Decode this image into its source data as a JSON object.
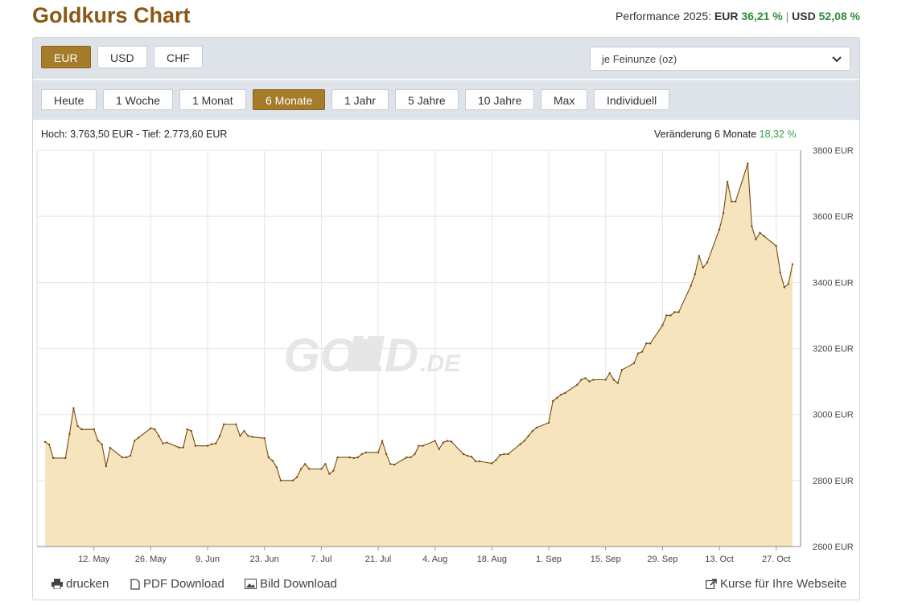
{
  "header": {
    "title": "Goldkurs Chart",
    "performance": {
      "label": "Performance 2025:",
      "eur_label": "EUR",
      "eur_value": "36,21 %",
      "separator": "|",
      "usd_label": "USD",
      "usd_value": "52,08 %"
    }
  },
  "currency_buttons": [
    "EUR",
    "USD",
    "CHF"
  ],
  "active_currency": 0,
  "unit_select": "je Feinunze (oz)",
  "range_buttons": [
    "Heute",
    "1 Woche",
    "1 Monat",
    "6 Monate",
    "1 Jahr",
    "5 Jahre",
    "10 Jahre",
    "Max",
    "Individuell"
  ],
  "active_range": 3,
  "stats": {
    "high_low": "Hoch: 3.763,50 EUR - Tief: 2.773,60 EUR",
    "change_label": "Veränderung 6 Monate",
    "change_value": "18,32 %"
  },
  "footer": {
    "links": [
      "drucken",
      "PDF Download",
      "Bild Download"
    ],
    "right_link": "Kurse für Ihre Webseite"
  },
  "chart_data": {
    "type": "area",
    "watermark": [
      "GOLD",
      ".DE"
    ],
    "x": [
      "04-30",
      "05-01",
      "05-02",
      "05-05",
      "05-06",
      "05-07",
      "05-08",
      "05-09",
      "05-12",
      "05-13",
      "05-14",
      "05-15",
      "05-16",
      "05-19",
      "05-20",
      "05-21",
      "05-22",
      "05-23",
      "05-26",
      "05-27",
      "05-28",
      "05-29",
      "05-30",
      "06-02",
      "06-03",
      "06-04",
      "06-05",
      "06-06",
      "06-09",
      "06-10",
      "06-11",
      "06-12",
      "06-13",
      "06-16",
      "06-17",
      "06-18",
      "06-19",
      "06-20",
      "06-23",
      "06-24",
      "06-25",
      "06-26",
      "06-27",
      "06-30",
      "07-01",
      "07-02",
      "07-03",
      "07-04",
      "07-07",
      "07-08",
      "07-09",
      "07-10",
      "07-11",
      "07-14",
      "07-15",
      "07-16",
      "07-17",
      "07-18",
      "07-21",
      "07-22",
      "07-23",
      "07-24",
      "07-25",
      "07-28",
      "07-29",
      "07-30",
      "07-31",
      "08-01",
      "08-04",
      "08-05",
      "08-06",
      "08-07",
      "08-08",
      "08-11",
      "08-12",
      "08-13",
      "08-14",
      "08-15",
      "08-18",
      "08-19",
      "08-20",
      "08-21",
      "08-22",
      "08-25",
      "08-26",
      "08-27",
      "08-28",
      "08-29",
      "09-01",
      "09-02",
      "09-03",
      "09-04",
      "09-05",
      "09-08",
      "09-09",
      "09-10",
      "09-11",
      "09-12",
      "09-15",
      "09-16",
      "09-17",
      "09-18",
      "09-19",
      "09-22",
      "09-23",
      "09-24",
      "09-25",
      "09-26",
      "09-29",
      "09-30",
      "10-01",
      "10-02",
      "10-03",
      "10-06",
      "10-07",
      "10-08",
      "10-09",
      "10-10",
      "10-13",
      "10-14",
      "10-15",
      "10-16",
      "10-17",
      "10-20",
      "10-21",
      "10-22",
      "10-23",
      "10-24",
      "10-27",
      "10-28",
      "10-29",
      "10-30",
      "10-31"
    ],
    "values": [
      2917,
      2909,
      2868,
      2868,
      2941,
      3019,
      2965,
      2955,
      2955,
      2921,
      2909,
      2843,
      2899,
      2870,
      2870,
      2875,
      2920,
      2930,
      2958,
      2955,
      2935,
      2912,
      2915,
      2900,
      2900,
      2955,
      2950,
      2905,
      2905,
      2910,
      2912,
      2935,
      2970,
      2970,
      2935,
      2950,
      2935,
      2932,
      2928,
      2870,
      2860,
      2840,
      2800,
      2800,
      2810,
      2835,
      2850,
      2835,
      2835,
      2850,
      2820,
      2830,
      2870,
      2870,
      2868,
      2870,
      2880,
      2885,
      2885,
      2920,
      2880,
      2850,
      2848,
      2870,
      2870,
      2880,
      2905,
      2905,
      2920,
      2895,
      2915,
      2920,
      2918,
      2880,
      2875,
      2872,
      2858,
      2858,
      2852,
      2862,
      2877,
      2880,
      2880,
      2910,
      2920,
      2935,
      2950,
      2960,
      2975,
      3040,
      3050,
      3060,
      3065,
      3090,
      3105,
      3110,
      3100,
      3105,
      3105,
      3125,
      3105,
      3095,
      3135,
      3155,
      3185,
      3190,
      3215,
      3215,
      3270,
      3300,
      3300,
      3310,
      3310,
      3390,
      3425,
      3480,
      3445,
      3460,
      3560,
      3610,
      3705,
      3645,
      3645,
      3760,
      3570,
      3530,
      3550,
      3540,
      3510,
      3430,
      3385,
      3395,
      3455
    ],
    "color": "#7a4a10",
    "fill": "#f5e4bd",
    "xlim": [
      "04-28",
      "11-02"
    ],
    "xticks": [
      {
        "value": "05-12",
        "label": "12. May"
      },
      {
        "value": "05-26",
        "label": "26. May"
      },
      {
        "value": "06-09",
        "label": "9. Jun"
      },
      {
        "value": "06-23",
        "label": "23. Jun"
      },
      {
        "value": "07-07",
        "label": "7. Jul"
      },
      {
        "value": "07-21",
        "label": "21. Jul"
      },
      {
        "value": "08-04",
        "label": "4. Aug"
      },
      {
        "value": "08-18",
        "label": "18. Aug"
      },
      {
        "value": "09-01",
        "label": "1. Sep"
      },
      {
        "value": "09-15",
        "label": "15. Sep"
      },
      {
        "value": "09-29",
        "label": "29. Sep"
      },
      {
        "value": "10-13",
        "label": "13. Oct"
      },
      {
        "value": "10-27",
        "label": "27. Oct"
      }
    ],
    "ylim": [
      2600,
      3800
    ],
    "yticks": [
      {
        "value": 2600,
        "label": "2600 EUR"
      },
      {
        "value": 2800,
        "label": "2800 EUR"
      },
      {
        "value": 3000,
        "label": "3000 EUR"
      },
      {
        "value": 3200,
        "label": "3200 EUR"
      },
      {
        "value": 3400,
        "label": "3400 EUR"
      },
      {
        "value": 3600,
        "label": "3600 EUR"
      },
      {
        "value": 3800,
        "label": "3800 EUR"
      }
    ],
    "grid": true
  }
}
